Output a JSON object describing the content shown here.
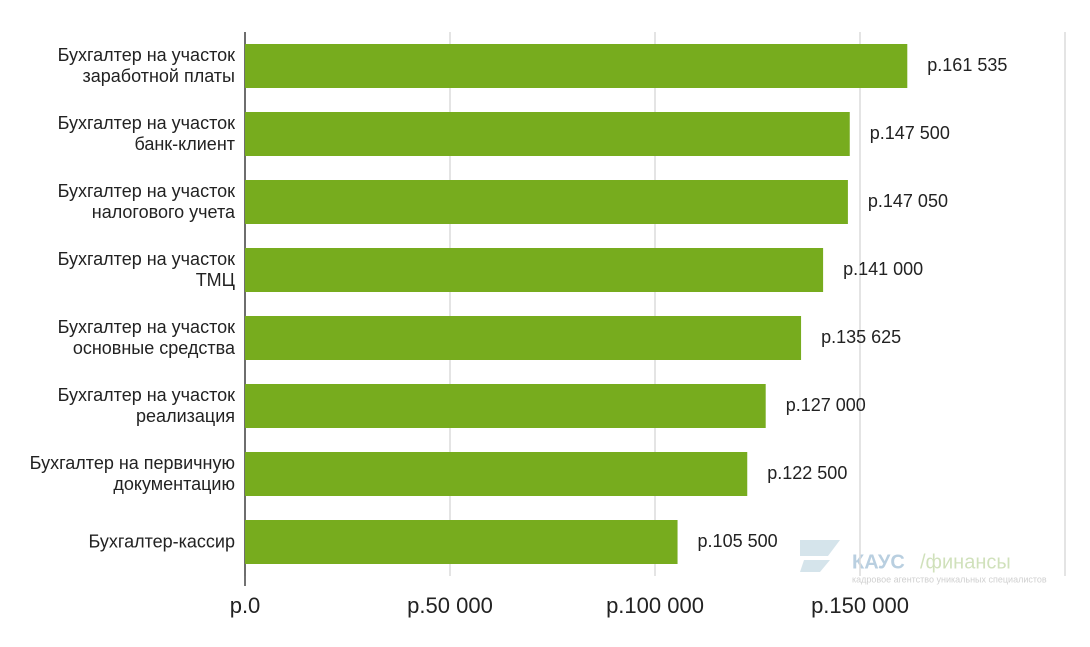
{
  "chart_data": {
    "type": "bar",
    "orientation": "horizontal",
    "categories": [
      "Бухгалтер на участок заработной платы",
      "Бухгалтер на участок банк-клиент",
      "Бухгалтер на участок налогового учета",
      "Бухгалтер на участок ТМЦ",
      "Бухгалтер на участок основные средства",
      "Бухгалтер на участок реализация",
      "Бухгалтер на первичную документацию",
      "Бухгалтер-кассир"
    ],
    "values": [
      161535,
      147500,
      147050,
      141000,
      135625,
      127000,
      122500,
      105500
    ],
    "value_labels": [
      "р.161 535",
      "р.147 500",
      "р.147 050",
      "р.141 000",
      "р.135 625",
      "р.127 000",
      "р.122 500",
      "р.105 500"
    ],
    "color": "#77ac1e",
    "xlim": [
      0,
      200000
    ],
    "xticks": [
      {
        "value": 0,
        "label": "р.0"
      },
      {
        "value": 50000,
        "label": "р.50 000"
      },
      {
        "value": 100000,
        "label": "р.100 000"
      },
      {
        "value": 150000,
        "label": "р.150 000"
      },
      {
        "value": 200000,
        "label": ""
      }
    ],
    "grid": true
  },
  "watermark": {
    "brand": "КАУС",
    "suffix": "/финансы",
    "tagline": "кадровое агентство уникальных специалистов"
  }
}
